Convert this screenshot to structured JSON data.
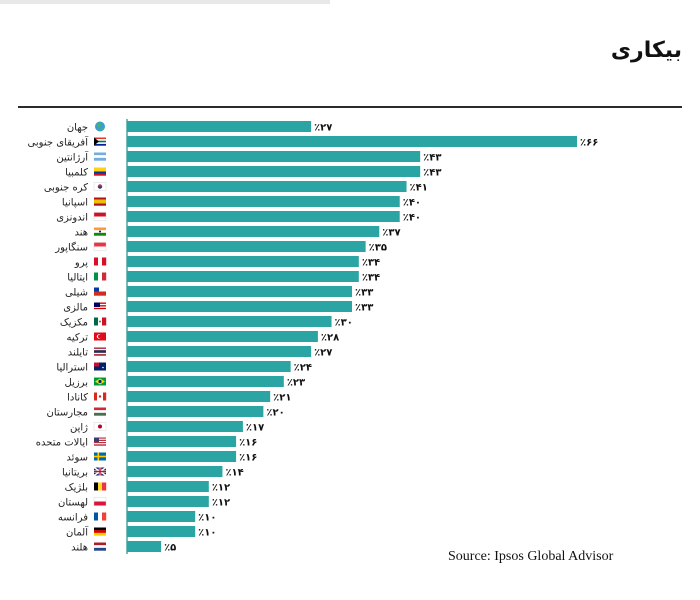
{
  "title": "بیکاری",
  "source": "Source: Ipsos Global Advisor",
  "colors": {
    "bar": "#2aa5a3",
    "axis": "#1f8f8d",
    "rule": "#2b2b2b"
  },
  "chart_data": {
    "type": "bar",
    "orientation": "horizontal",
    "title": "بیکاری",
    "value_prefix": "٪",
    "xlim": [
      0,
      66
    ],
    "categories": [
      "جهان",
      "آفریقای جنوبی",
      "آرژانتین",
      "کلمبیا",
      "کره جنوبی",
      "اسپانیا",
      "اندونزی",
      "هند",
      "سنگاپور",
      "پرو",
      "ایتالیا",
      "شیلی",
      "مالزی",
      "مکزیک",
      "ترکیه",
      "تایلند",
      "استرالیا",
      "برزیل",
      "کانادا",
      "مجارستان",
      "ژاپن",
      "ایالات متحده",
      "سوئد",
      "بریتانیا",
      "بلژیک",
      "لهستان",
      "فرانسه",
      "آلمان",
      "هلند"
    ],
    "value_labels": [
      "٪۲۷",
      "٪۶۶",
      "٪۴۳",
      "٪۴۳",
      "٪۴۱",
      "٪۴۰",
      "٪۴۰",
      "٪۳۷",
      "٪۳۵",
      "٪۳۴",
      "٪۳۴",
      "٪۳۳",
      "٪۳۳",
      "٪۳۰",
      "٪۲۸",
      "٪۲۷",
      "٪۲۴",
      "٪۲۳",
      "٪۲۱",
      "٪۲۰",
      "٪۱۷",
      "٪۱۶",
      "٪۱۶",
      "٪۱۴",
      "٪۱۲",
      "٪۱۲",
      "٪۱۰",
      "٪۱۰",
      "٪۵"
    ],
    "values": [
      27,
      66,
      43,
      43,
      41,
      40,
      40,
      37,
      35,
      34,
      34,
      33,
      33,
      30,
      28,
      27,
      24,
      23,
      21,
      20,
      17,
      16,
      16,
      14,
      12,
      12,
      10,
      10,
      5
    ],
    "flag_icons": [
      "globe-icon",
      "flag-south-africa-icon",
      "flag-argentina-icon",
      "flag-colombia-icon",
      "flag-south-korea-icon",
      "flag-spain-icon",
      "flag-indonesia-icon",
      "flag-india-icon",
      "flag-singapore-icon",
      "flag-peru-icon",
      "flag-italy-icon",
      "flag-chile-icon",
      "flag-malaysia-icon",
      "flag-mexico-icon",
      "flag-turkey-icon",
      "flag-thailand-icon",
      "flag-australia-icon",
      "flag-brazil-icon",
      "flag-canada-icon",
      "flag-hungary-icon",
      "flag-japan-icon",
      "flag-usa-icon",
      "flag-sweden-icon",
      "flag-uk-icon",
      "flag-belgium-icon",
      "flag-poland-icon",
      "flag-france-icon",
      "flag-germany-icon",
      "flag-netherlands-icon"
    ]
  }
}
